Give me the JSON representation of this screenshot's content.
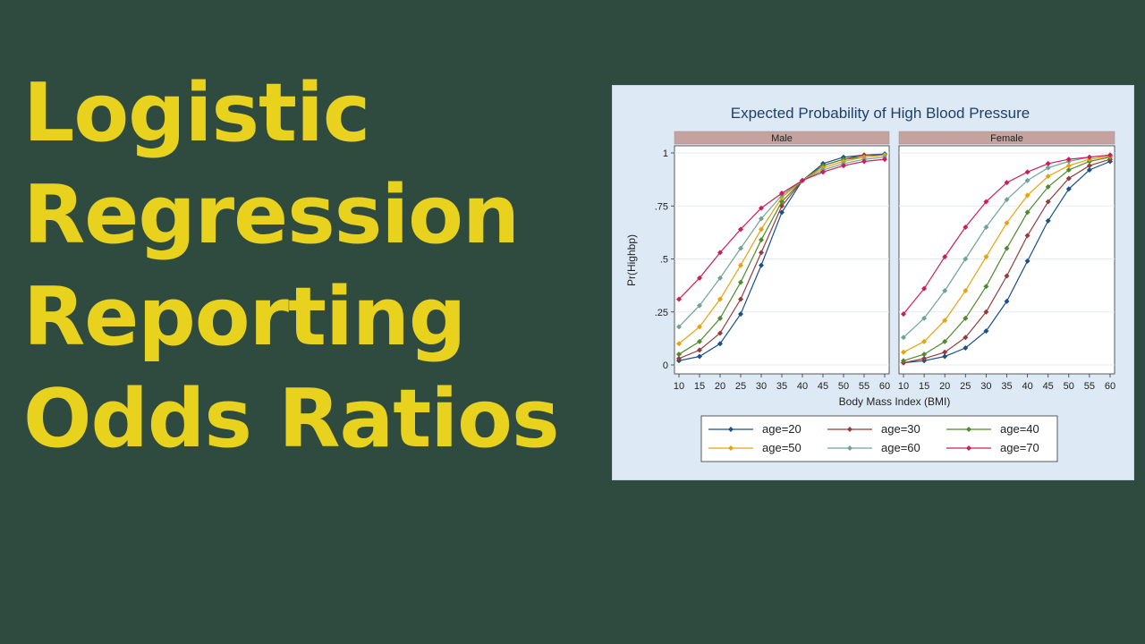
{
  "headline": {
    "lines": [
      "Logistic",
      "Regression",
      "Reporting",
      "Odds Ratios"
    ]
  },
  "colors": {
    "background": "#2f4b40",
    "headline": "#e8d21e",
    "panel_bg": "#dde9f5",
    "strip_bg": "#c4a29e"
  },
  "chart_data": {
    "type": "line",
    "title": "Expected Probability of High Blood Pressure",
    "xlabel": "Body Mass Index (BMI)",
    "ylabel": "Pr(Highbp)",
    "xlim": [
      10,
      60
    ],
    "ylim": [
      0,
      1
    ],
    "x_ticks": [
      "10",
      "15",
      "20",
      "25",
      "30",
      "35",
      "40",
      "45",
      "50",
      "55",
      "60"
    ],
    "y_ticks": [
      "0",
      ".25",
      ".5",
      ".75",
      "1"
    ],
    "legend_position": "bottom",
    "grid": true,
    "x": [
      10,
      15,
      20,
      25,
      30,
      35,
      40,
      45,
      50,
      55,
      60
    ],
    "panels": [
      {
        "name": "Male",
        "series": [
          {
            "name": "age=20",
            "color": "#1a4f8a",
            "values": [
              0.02,
              0.04,
              0.1,
              0.24,
              0.47,
              0.72,
              0.87,
              0.95,
              0.98,
              0.99,
              0.995
            ]
          },
          {
            "name": "age=30",
            "color": "#943c3c",
            "values": [
              0.03,
              0.07,
              0.15,
              0.31,
              0.53,
              0.75,
              0.87,
              0.94,
              0.97,
              0.99,
              0.99
            ]
          },
          {
            "name": "age=40",
            "color": "#4f8a2e",
            "values": [
              0.05,
              0.11,
              0.22,
              0.39,
              0.59,
              0.77,
              0.87,
              0.94,
              0.97,
              0.98,
              0.99
            ]
          },
          {
            "name": "age=50",
            "color": "#e8a20c",
            "values": [
              0.1,
              0.18,
              0.31,
              0.47,
              0.64,
              0.79,
              0.87,
              0.93,
              0.96,
              0.98,
              0.99
            ]
          },
          {
            "name": "age=60",
            "color": "#6fa39a",
            "values": [
              0.18,
              0.28,
              0.41,
              0.55,
              0.69,
              0.8,
              0.87,
              0.92,
              0.95,
              0.97,
              0.98
            ]
          },
          {
            "name": "age=70",
            "color": "#cc1f5a",
            "values": [
              0.31,
              0.41,
              0.53,
              0.64,
              0.74,
              0.81,
              0.87,
              0.91,
              0.94,
              0.96,
              0.97
            ]
          }
        ]
      },
      {
        "name": "Female",
        "series": [
          {
            "name": "age=20",
            "color": "#1a4f8a",
            "values": [
              0.01,
              0.02,
              0.04,
              0.08,
              0.16,
              0.3,
              0.49,
              0.68,
              0.83,
              0.92,
              0.96
            ]
          },
          {
            "name": "age=30",
            "color": "#943c3c",
            "values": [
              0.01,
              0.03,
              0.06,
              0.13,
              0.25,
              0.42,
              0.61,
              0.77,
              0.88,
              0.94,
              0.97
            ]
          },
          {
            "name": "age=40",
            "color": "#4f8a2e",
            "values": [
              0.02,
              0.05,
              0.11,
              0.22,
              0.37,
              0.55,
              0.72,
              0.84,
              0.92,
              0.96,
              0.98
            ]
          },
          {
            "name": "age=50",
            "color": "#e8a20c",
            "values": [
              0.06,
              0.11,
              0.21,
              0.35,
              0.51,
              0.67,
              0.8,
              0.89,
              0.94,
              0.97,
              0.985
            ]
          },
          {
            "name": "age=60",
            "color": "#6fa39a",
            "values": [
              0.13,
              0.22,
              0.35,
              0.5,
              0.65,
              0.78,
              0.87,
              0.93,
              0.96,
              0.98,
              0.99
            ]
          },
          {
            "name": "age=70",
            "color": "#cc1f5a",
            "values": [
              0.24,
              0.36,
              0.51,
              0.65,
              0.77,
              0.86,
              0.91,
              0.95,
              0.97,
              0.98,
              0.99
            ]
          }
        ]
      }
    ]
  }
}
